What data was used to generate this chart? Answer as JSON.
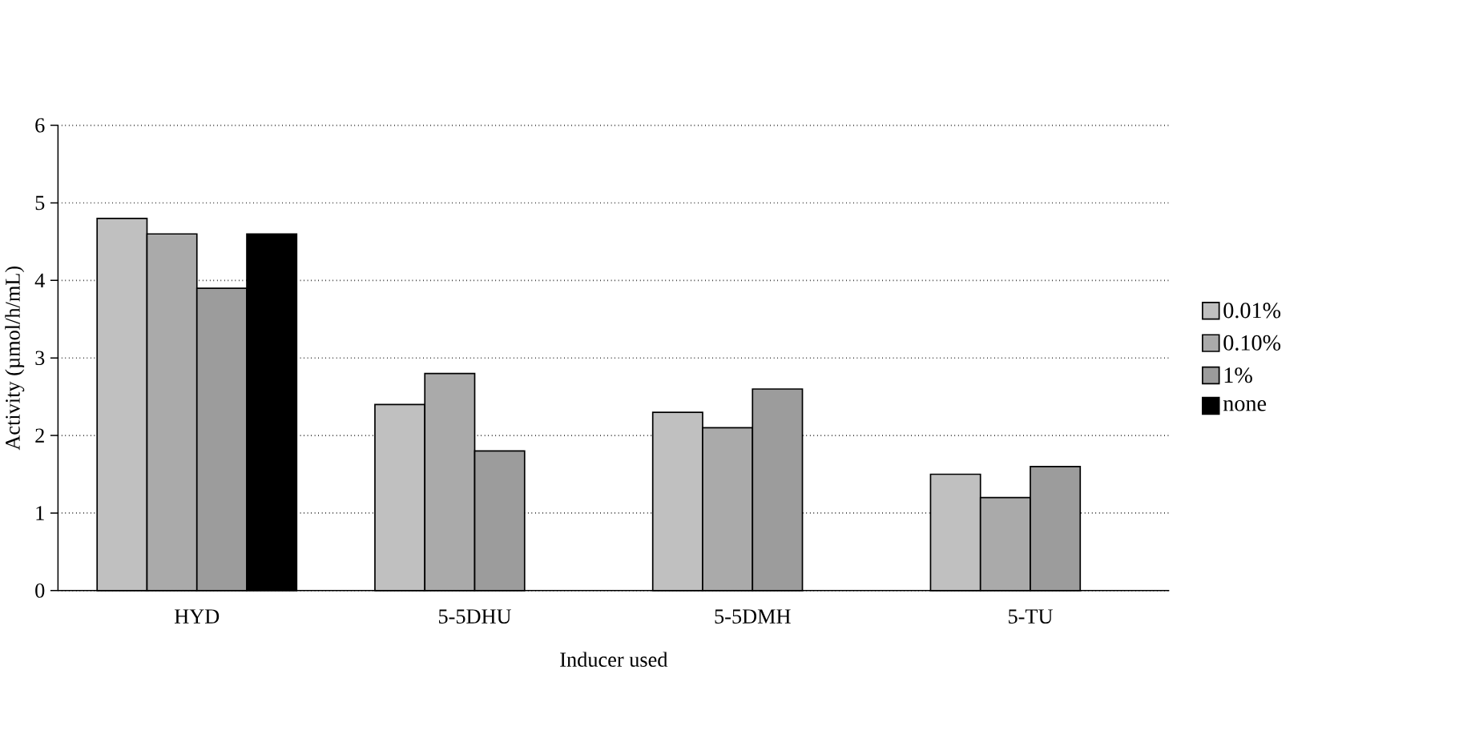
{
  "chart_data": {
    "type": "bar",
    "xlabel": "Inducer used",
    "ylabel": "Activity (µmol/h/mL)",
    "categories": [
      "HYD",
      "5-5DHU",
      "5-5DMH",
      "5-TU"
    ],
    "series": [
      {
        "name": "0.01%",
        "color": "#c0c0c0",
        "values": [
          4.8,
          2.4,
          2.3,
          1.5
        ]
      },
      {
        "name": "0.10%",
        "color": "#aaaaaa",
        "values": [
          4.6,
          2.8,
          2.1,
          1.2
        ]
      },
      {
        "name": "1%",
        "color": "#9c9c9c",
        "values": [
          3.9,
          1.8,
          2.6,
          1.6
        ]
      },
      {
        "name": "none",
        "color": "#000000",
        "values": [
          4.6,
          null,
          null,
          null
        ]
      }
    ],
    "ylim": [
      0,
      6
    ],
    "yticks": [
      0,
      1,
      2,
      3,
      4,
      5,
      6
    ],
    "grid": "y",
    "legend": "right"
  }
}
